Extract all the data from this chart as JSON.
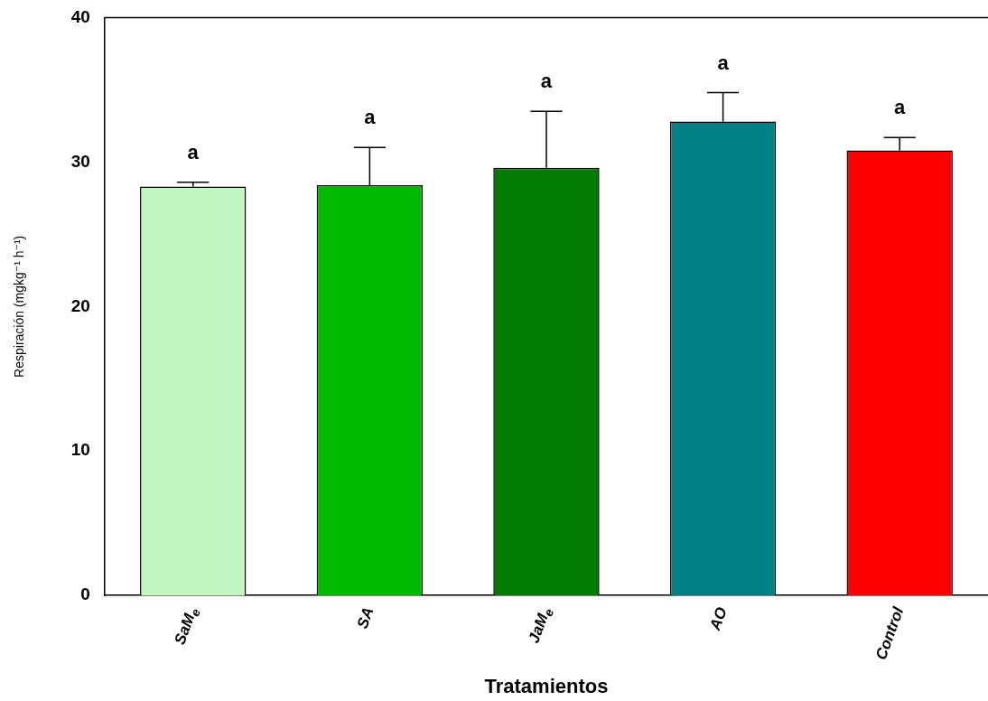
{
  "chart_data": {
    "type": "bar",
    "xlabel": "Tratamientos",
    "ylabel": "Respiración (mgkg⁻¹ h⁻¹)",
    "categories": [
      "SaM$_{e}$",
      "SA",
      "JaM$_{e}$",
      "AO",
      "Control"
    ],
    "values": [
      28.3,
      28.4,
      29.6,
      32.8,
      30.8
    ],
    "colors": [
      "#c0f7c0",
      "#00bb00",
      "#007a00",
      "#008080",
      "#ff0000"
    ],
    "errors": [
      [
        28.3,
        28.6
      ],
      [
        28.4,
        31.0
      ],
      [
        29.6,
        33.5
      ],
      [
        32.8,
        34.8
      ],
      [
        30.8,
        31.7
      ]
    ],
    "ylim": [
      0,
      40
    ],
    "yticks": [
      0,
      10,
      20,
      30,
      40
    ],
    "grid": false,
    "legend": false,
    "annotations": [
      "a",
      "a",
      "a",
      "a",
      "a"
    ]
  }
}
